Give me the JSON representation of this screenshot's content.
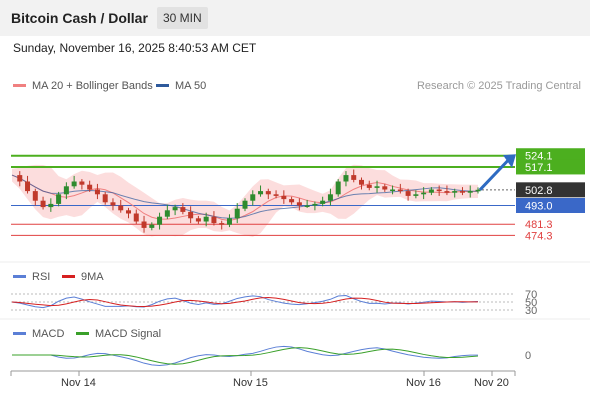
{
  "header": {
    "title": "Bitcoin Cash / Dollar",
    "timeframe": "30 MIN"
  },
  "datetime": "Sunday, November 16, 2025 8:40:53 AM CET",
  "legend": {
    "ma20": {
      "label": "MA 20 + Bollinger Bands",
      "color": "#f08080"
    },
    "ma50": {
      "label": "MA 50",
      "color": "#2e5a9c"
    }
  },
  "research": "Research © 2025 Trading Central",
  "chart_data": {
    "type": "candlestick",
    "price_levels": [
      {
        "value": "524.1",
        "kind": "resistance",
        "color": "#4caf1f"
      },
      {
        "value": "517.1",
        "kind": "resistance",
        "color": "#4caf1f"
      },
      {
        "value": "502.8",
        "kind": "last",
        "color": "#333333"
      },
      {
        "value": "493.0",
        "kind": "support",
        "color": "#3a68c8"
      },
      {
        "value": "481.3",
        "kind": "support",
        "color": "#e04040"
      },
      {
        "value": "474.3",
        "kind": "support",
        "color": "#e04040"
      }
    ],
    "xlabels": [
      "Nov 14",
      "Nov 15",
      "Nov 16",
      "Nov 20"
    ],
    "colors": {
      "up": "#2e8b2e",
      "down": "#c0392b",
      "band": "#fbd5d5"
    },
    "close_trajectory": [
      512,
      508,
      502,
      496,
      492,
      494,
      500,
      505,
      508,
      506,
      503,
      500,
      495,
      493,
      490,
      488,
      483,
      479,
      481,
      486,
      490,
      492,
      489,
      485,
      483,
      486,
      482,
      481,
      485,
      491,
      496,
      500,
      502,
      500,
      499,
      497,
      495,
      493,
      493,
      494,
      496,
      500,
      508,
      512,
      509,
      506,
      504,
      505,
      503,
      503,
      502,
      499,
      500,
      501,
      503,
      502,
      501,
      502,
      501,
      502,
      502.8
    ],
    "rsi": {
      "label": "RSI",
      "signal_label": "9MA",
      "levels": [
        "70",
        "50",
        "30"
      ],
      "colors": {
        "rsi": "#5b7fd6",
        "signal": "#d62020"
      }
    },
    "macd": {
      "label": "MACD",
      "signal_label": "MACD Signal",
      "levels": [
        "0"
      ],
      "colors": {
        "macd": "#5b7fd6",
        "signal": "#3aa02a"
      }
    }
  }
}
